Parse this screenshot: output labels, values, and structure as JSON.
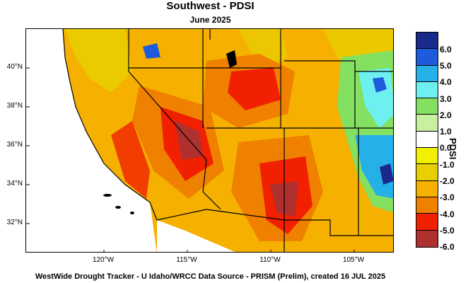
{
  "title": "Southwest - PDSI",
  "subtitle": "June 2025",
  "footer": "WestWide Drought Tracker - U Idaho/WRCC  Data Source - PRISM (Prelim), created 16 JUL 2025",
  "colorbar": {
    "title": "PDSI",
    "labels": [
      "6.0",
      "5.0",
      "4.0",
      "3.0",
      "2.0",
      "1.0",
      "0.0",
      "-1.0",
      "-2.0",
      "-3.0",
      "-4.0",
      "-5.0",
      "-6.0"
    ],
    "colors": [
      "#1a2a8a",
      "#1e5bdc",
      "#25b0e8",
      "#6ef0f0",
      "#84e060",
      "#c8f0a0",
      "#ffffff",
      "#f0f000",
      "#e8d000",
      "#f5b000",
      "#f08000",
      "#f02000",
      "#b03030"
    ]
  },
  "axes": {
    "lat_labels": [
      "40°N",
      "38°N",
      "36°N",
      "34°N",
      "32°N"
    ],
    "lon_labels": [
      "120°W",
      "115°W",
      "110°W",
      "105°W"
    ]
  }
}
